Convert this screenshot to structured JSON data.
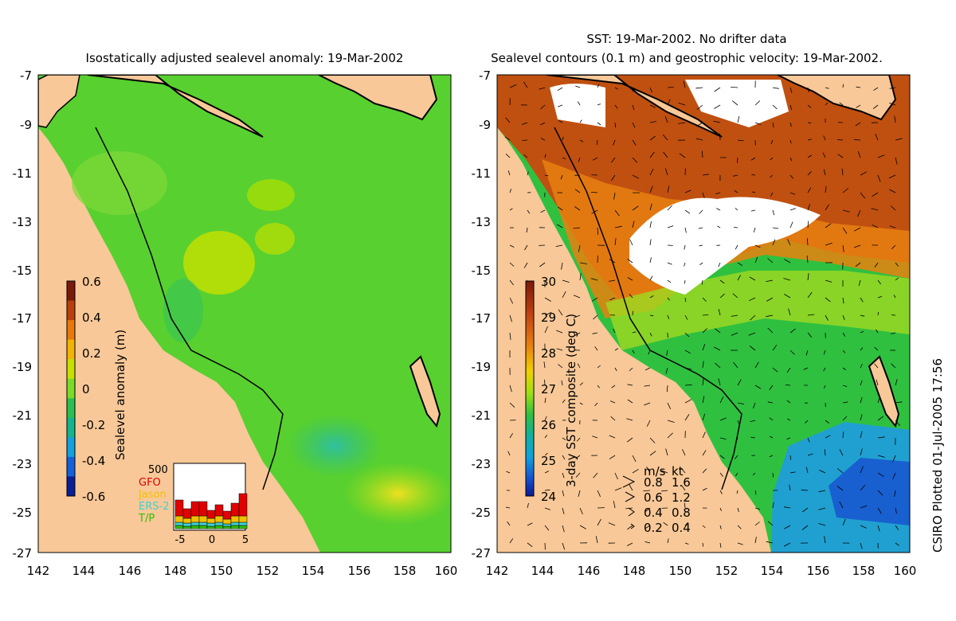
{
  "left_panel": {
    "title": "Isostatically adjusted sealevel anomaly: 19-Mar-2002",
    "colorbar": {
      "label": "Sealevel anomaly (m)",
      "ticks": [
        "0.6",
        "0.4",
        "0.2",
        "0",
        "-0.2",
        "-0.4",
        "-0.6"
      ],
      "colors": [
        "#7a1a08",
        "#b8400c",
        "#e8780c",
        "#f2b400",
        "#c8e000",
        "#78dc28",
        "#28c050",
        "#14b48c",
        "#14a0dc",
        "#1460dc",
        "#0a1e96"
      ]
    },
    "mission_inset": {
      "max_label": "500",
      "missions": [
        {
          "name": "GFO",
          "color": "#e00000"
        },
        {
          "name": "Jason",
          "color": "#f0c000"
        },
        {
          "name": "ERS-2",
          "color": "#40d0d0"
        },
        {
          "name": "T/P",
          "color": "#30c000"
        }
      ],
      "x_ticks": [
        "-5",
        "0",
        "5"
      ]
    }
  },
  "right_panel": {
    "title_line1": "SST: 19-Mar-2002. No drifter data",
    "title_line2": "Sealevel contours (0.1 m) and geostrophic velocity: 19-Mar-2002.",
    "colorbar": {
      "label": "3-day SST composite (deg C)",
      "ticks": [
        "30",
        "29",
        "28",
        "27",
        "26",
        "25",
        "24"
      ]
    },
    "velocity_legend": {
      "header_ms": "m/s",
      "header_kt": "kt",
      "rows": [
        {
          "ms": "0.8",
          "kt": "1.6"
        },
        {
          "ms": "0.6",
          "kt": "1.2"
        },
        {
          "ms": "0.4",
          "kt": "0.8"
        },
        {
          "ms": "0.2",
          "kt": "0.4"
        }
      ]
    }
  },
  "axes": {
    "y_ticks": [
      "-7",
      "-9",
      "-11",
      "-13",
      "-15",
      "-17",
      "-19",
      "-21",
      "-23",
      "-25",
      "-27"
    ],
    "x_ticks": [
      "142",
      "144",
      "146",
      "148",
      "150",
      "152",
      "154",
      "156",
      "158",
      "160"
    ]
  },
  "side_stamp": "CSIRO Plotted 01-Jul-2005 17:56",
  "colors": {
    "land": "#f8c898",
    "ocean_anomaly": "#58d030",
    "sst_warm": "#c05010",
    "sst_mid": "#30c040",
    "sst_cool": "#20a0d0",
    "cloud": "#ffffff"
  }
}
